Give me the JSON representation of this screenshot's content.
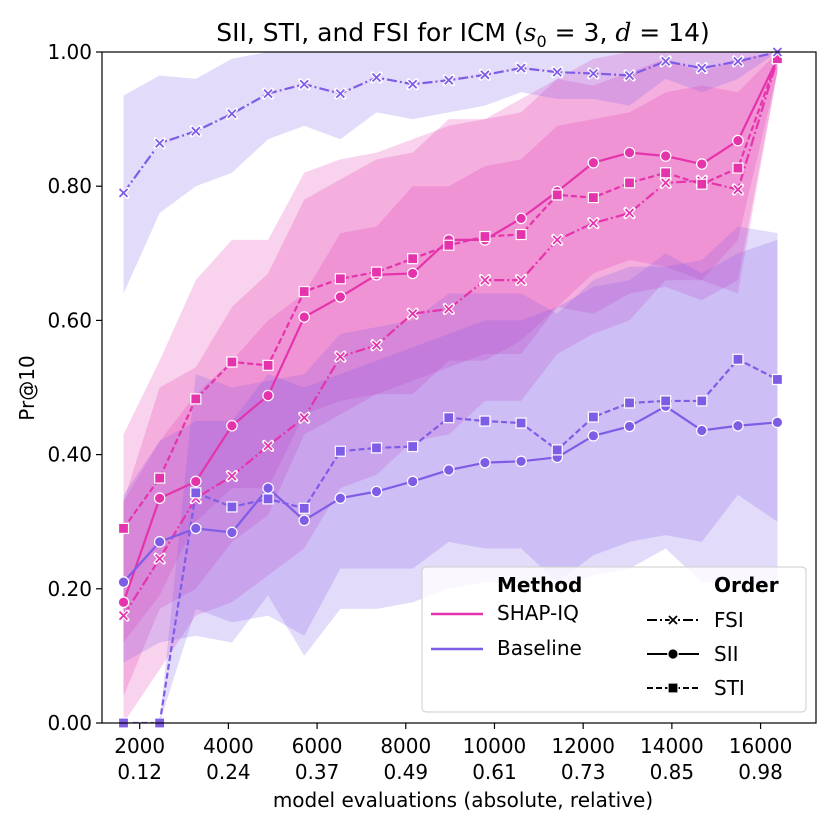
{
  "chart_data": {
    "type": "line",
    "title": "SII, STI, and FSI for ICM (s₀ = 3, d = 14)",
    "title_parts": {
      "prefix": "SII, STI, and FSI for ICM (",
      "s": "s",
      "sub": "0",
      "eq1": " = 3, ",
      "d": "d",
      "eq2": " = 14)"
    },
    "xlabel": "model evaluations (absolute, relative)",
    "ylabel": "Pr@10",
    "xlim": [
      1150,
      17250
    ],
    "ylim": [
      0,
      1
    ],
    "x_ticks": [
      {
        "value": 2000,
        "abs": "2000",
        "rel": "0.12"
      },
      {
        "value": 4000,
        "abs": "4000",
        "rel": "0.24"
      },
      {
        "value": 6000,
        "abs": "6000",
        "rel": "0.37"
      },
      {
        "value": 8000,
        "abs": "8000",
        "rel": "0.49"
      },
      {
        "value": 10000,
        "abs": "10000",
        "rel": "0.61"
      },
      {
        "value": 12000,
        "abs": "12000",
        "rel": "0.73"
      },
      {
        "value": 14000,
        "abs": "14000",
        "rel": "0.85"
      },
      {
        "value": 16000,
        "abs": "16000",
        "rel": "0.98"
      }
    ],
    "y_ticks": [
      {
        "value": 0.0,
        "label": "0.00"
      },
      {
        "value": 0.2,
        "label": "0.20"
      },
      {
        "value": 0.4,
        "label": "0.40"
      },
      {
        "value": 0.6,
        "label": "0.60"
      },
      {
        "value": 0.8,
        "label": "0.80"
      },
      {
        "value": 1.0,
        "label": "1.00"
      }
    ],
    "x": [
      1635,
      2450,
      3265,
      4080,
      4895,
      5710,
      6525,
      7340,
      8155,
      8970,
      9785,
      10600,
      11415,
      12230,
      13045,
      13860,
      14675,
      15490,
      16380
    ],
    "colors": {
      "shapiq": "#e533ac",
      "baseline": "#7f5ce6"
    },
    "series": [
      {
        "name": "SHAP-IQ FSI",
        "method": "shapiq",
        "order": "FSI",
        "values": [
          0.16,
          0.245,
          0.335,
          0.368,
          0.413,
          0.455,
          0.546,
          0.563,
          0.61,
          0.617,
          0.66,
          0.66,
          0.72,
          0.745,
          0.76,
          0.805,
          0.808,
          0.795,
          0.99
        ],
        "band": [
          [
            0.0,
            0.33
          ],
          [
            0.08,
            0.42
          ],
          [
            0.16,
            0.49
          ],
          [
            0.18,
            0.54
          ],
          [
            0.22,
            0.6
          ],
          [
            0.26,
            0.64
          ],
          [
            0.35,
            0.73
          ],
          [
            0.37,
            0.74
          ],
          [
            0.42,
            0.8
          ],
          [
            0.43,
            0.8
          ],
          [
            0.48,
            0.83
          ],
          [
            0.48,
            0.84
          ],
          [
            0.55,
            0.89
          ],
          [
            0.58,
            0.9
          ],
          [
            0.6,
            0.91
          ],
          [
            0.66,
            0.94
          ],
          [
            0.66,
            0.95
          ],
          [
            0.64,
            0.94
          ],
          [
            0.97,
            1.0
          ]
        ]
      },
      {
        "name": "SHAP-IQ SII",
        "method": "shapiq",
        "order": "SII",
        "values": [
          0.18,
          0.335,
          0.36,
          0.443,
          0.488,
          0.605,
          0.635,
          0.668,
          0.67,
          0.72,
          0.72,
          0.752,
          0.792,
          0.835,
          0.85,
          0.845,
          0.833,
          0.868,
          0.99
        ],
        "band": [
          [
            0.04,
            0.33
          ],
          [
            0.17,
            0.5
          ],
          [
            0.2,
            0.53
          ],
          [
            0.27,
            0.62
          ],
          [
            0.31,
            0.67
          ],
          [
            0.43,
            0.78
          ],
          [
            0.46,
            0.81
          ],
          [
            0.49,
            0.84
          ],
          [
            0.49,
            0.85
          ],
          [
            0.54,
            0.9
          ],
          [
            0.54,
            0.9
          ],
          [
            0.57,
            0.93
          ],
          [
            0.62,
            0.96
          ],
          [
            0.67,
            0.99
          ],
          [
            0.69,
            1.0
          ],
          [
            0.68,
            1.0
          ],
          [
            0.66,
            1.0
          ],
          [
            0.72,
            1.0
          ],
          [
            0.97,
            1.0
          ]
        ]
      },
      {
        "name": "SHAP-IQ STI",
        "method": "shapiq",
        "order": "STI",
        "values": [
          0.29,
          0.365,
          0.483,
          0.538,
          0.533,
          0.643,
          0.662,
          0.672,
          0.692,
          0.712,
          0.725,
          0.728,
          0.787,
          0.783,
          0.805,
          0.82,
          0.803,
          0.827,
          0.99
        ],
        "band": [
          [
            0.12,
            0.43
          ],
          [
            0.19,
            0.54
          ],
          [
            0.3,
            0.66
          ],
          [
            0.35,
            0.72
          ],
          [
            0.35,
            0.72
          ],
          [
            0.46,
            0.82
          ],
          [
            0.48,
            0.84
          ],
          [
            0.49,
            0.85
          ],
          [
            0.51,
            0.87
          ],
          [
            0.53,
            0.89
          ],
          [
            0.55,
            0.9
          ],
          [
            0.55,
            0.91
          ],
          [
            0.62,
            0.96
          ],
          [
            0.61,
            0.95
          ],
          [
            0.64,
            0.97
          ],
          [
            0.65,
            0.99
          ],
          [
            0.63,
            0.97
          ],
          [
            0.66,
            0.99
          ],
          [
            0.97,
            1.0
          ]
        ]
      },
      {
        "name": "Baseline FSI",
        "method": "baseline",
        "order": "FSI",
        "values": [
          0.79,
          0.864,
          0.882,
          0.908,
          0.938,
          0.952,
          0.938,
          0.962,
          0.952,
          0.958,
          0.966,
          0.976,
          0.97,
          0.968,
          0.965,
          0.986,
          0.976,
          0.986,
          1.0
        ],
        "band": [
          [
            0.64,
            0.935
          ],
          [
            0.76,
            0.965
          ],
          [
            0.8,
            0.96
          ],
          [
            0.82,
            0.99
          ],
          [
            0.87,
            1.0
          ],
          [
            0.89,
            1.0
          ],
          [
            0.87,
            1.0
          ],
          [
            0.91,
            1.0
          ],
          [
            0.9,
            1.0
          ],
          [
            0.91,
            1.0
          ],
          [
            0.92,
            1.0
          ],
          [
            0.94,
            1.0
          ],
          [
            0.93,
            1.0
          ],
          [
            0.93,
            1.0
          ],
          [
            0.92,
            1.0
          ],
          [
            0.96,
            1.0
          ],
          [
            0.94,
            1.0
          ],
          [
            0.96,
            1.0
          ],
          [
            1.0,
            1.0
          ]
        ]
      },
      {
        "name": "Baseline SII",
        "method": "baseline",
        "order": "SII",
        "values": [
          0.21,
          0.27,
          0.29,
          0.284,
          0.35,
          0.302,
          0.335,
          0.345,
          0.36,
          0.377,
          0.388,
          0.39,
          0.396,
          0.428,
          0.442,
          0.472,
          0.436,
          0.443,
          0.448
        ],
        "band": [
          [
            0.09,
            0.34
          ],
          [
            0.12,
            0.42
          ],
          [
            0.13,
            0.45
          ],
          [
            0.12,
            0.45
          ],
          [
            0.19,
            0.52
          ],
          [
            0.1,
            0.5
          ],
          [
            0.17,
            0.52
          ],
          [
            0.17,
            0.54
          ],
          [
            0.18,
            0.56
          ],
          [
            0.2,
            0.58
          ],
          [
            0.21,
            0.6
          ],
          [
            0.21,
            0.6
          ],
          [
            0.2,
            0.62
          ],
          [
            0.22,
            0.65
          ],
          [
            0.23,
            0.66
          ],
          [
            0.26,
            0.7
          ],
          [
            0.21,
            0.67
          ],
          [
            0.21,
            0.7
          ],
          [
            0.2,
            0.72
          ]
        ]
      },
      {
        "name": "Baseline STI",
        "method": "baseline",
        "order": "STI",
        "values": [
          0.0,
          0.0,
          0.343,
          0.322,
          0.334,
          0.32,
          0.405,
          0.41,
          0.412,
          0.455,
          0.45,
          0.447,
          0.407,
          0.456,
          0.477,
          0.48,
          0.48,
          0.542,
          0.512
        ],
        "band": [
          [
            0.0,
            0.0
          ],
          [
            0.0,
            0.0
          ],
          [
            0.17,
            0.52
          ],
          [
            0.15,
            0.5
          ],
          [
            0.16,
            0.51
          ],
          [
            0.13,
            0.52
          ],
          [
            0.23,
            0.58
          ],
          [
            0.23,
            0.59
          ],
          [
            0.23,
            0.6
          ],
          [
            0.27,
            0.64
          ],
          [
            0.26,
            0.64
          ],
          [
            0.26,
            0.64
          ],
          [
            0.21,
            0.61
          ],
          [
            0.25,
            0.66
          ],
          [
            0.27,
            0.68
          ],
          [
            0.28,
            0.68
          ],
          [
            0.27,
            0.69
          ],
          [
            0.34,
            0.74
          ],
          [
            0.3,
            0.73
          ]
        ]
      }
    ],
    "legend": {
      "placement": "bottom-right",
      "method_title": "Method",
      "order_title": "Order",
      "methods": [
        {
          "key": "shapiq",
          "label": "SHAP-IQ"
        },
        {
          "key": "baseline",
          "label": "Baseline"
        }
      ],
      "orders": [
        {
          "key": "FSI",
          "label": "FSI"
        },
        {
          "key": "SII",
          "label": "SII"
        },
        {
          "key": "STI",
          "label": "STI"
        }
      ]
    }
  }
}
